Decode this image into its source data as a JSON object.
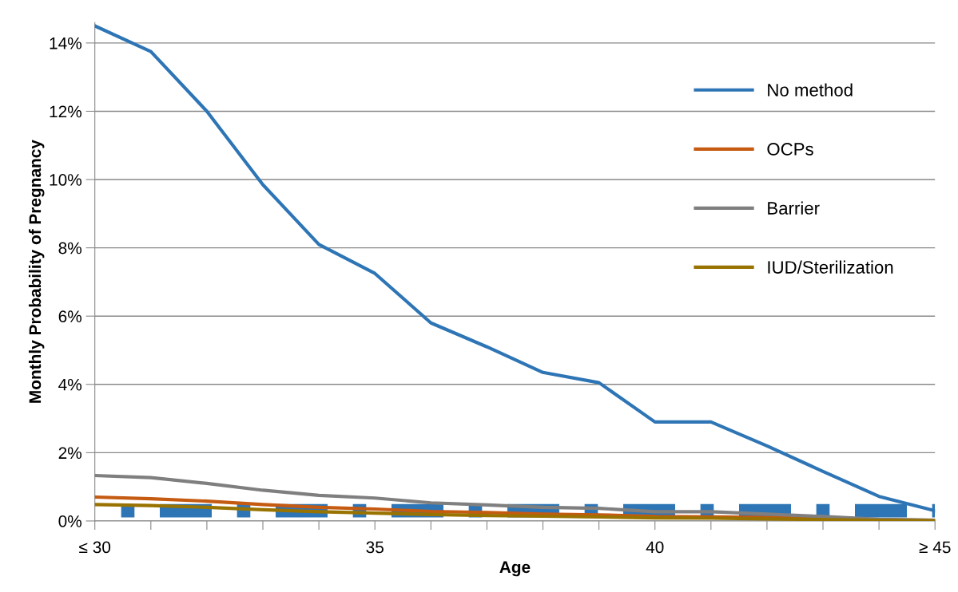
{
  "chart_data": {
    "type": "line",
    "xlabel": "Age",
    "ylabel": "Monthly Probability of Pregnancy",
    "x": [
      30,
      31,
      32,
      33,
      34,
      35,
      36,
      37,
      38,
      39,
      40,
      41,
      42,
      43,
      44,
      45
    ],
    "xlim": [
      30,
      45
    ],
    "xticks": [
      {
        "value": 30,
        "label": "≤ 30"
      },
      {
        "value": 31,
        "label": null
      },
      {
        "value": 32,
        "label": null
      },
      {
        "value": 33,
        "label": null
      },
      {
        "value": 34,
        "label": null
      },
      {
        "value": 35,
        "label": "35"
      },
      {
        "value": 36,
        "label": null
      },
      {
        "value": 37,
        "label": null
      },
      {
        "value": 38,
        "label": null
      },
      {
        "value": 39,
        "label": null
      },
      {
        "value": 40,
        "label": "40"
      },
      {
        "value": 41,
        "label": null
      },
      {
        "value": 42,
        "label": null
      },
      {
        "value": 43,
        "label": null
      },
      {
        "value": 44,
        "label": null
      },
      {
        "value": 45,
        "label": "≥ 45"
      }
    ],
    "ylim": [
      0,
      14.6
    ],
    "yticks": [
      {
        "value": 0,
        "label": "0%"
      },
      {
        "value": 2,
        "label": "2%"
      },
      {
        "value": 4,
        "label": "4%"
      },
      {
        "value": 6,
        "label": "6%"
      },
      {
        "value": 8,
        "label": "8%"
      },
      {
        "value": 10,
        "label": "10%"
      },
      {
        "value": 12,
        "label": "12%"
      },
      {
        "value": 14,
        "label": "14%"
      }
    ],
    "grid": "y",
    "legend": "right",
    "marker": "none",
    "line_style": "solid",
    "series": [
      {
        "name": "No method",
        "color": "#2e75b6",
        "values": [
          14.5,
          13.75,
          12.0,
          9.85,
          8.1,
          7.25,
          5.8,
          5.1,
          4.35,
          4.05,
          2.9,
          2.9,
          2.2,
          1.45,
          0.72,
          0.3
        ]
      },
      {
        "name": "OCPs",
        "color": "#c55a11",
        "values": [
          0.7,
          0.65,
          0.58,
          0.48,
          0.4,
          0.35,
          0.28,
          0.25,
          0.2,
          0.18,
          0.13,
          0.12,
          0.1,
          0.07,
          0.04,
          0.02
        ]
      },
      {
        "name": "Barrier",
        "color": "#7f7f7f",
        "values": [
          1.33,
          1.27,
          1.1,
          0.9,
          0.75,
          0.67,
          0.53,
          0.47,
          0.4,
          0.37,
          0.27,
          0.27,
          0.2,
          0.13,
          0.05,
          0.02
        ]
      },
      {
        "name": "IUD/Sterilization",
        "color": "#997300",
        "values": [
          0.48,
          0.45,
          0.4,
          0.33,
          0.27,
          0.23,
          0.19,
          0.16,
          0.14,
          0.12,
          0.09,
          0.08,
          0.06,
          0.04,
          0.02,
          0.01
        ]
      },
      {
        "color": "#2e75b6",
        "line_style": "dashed",
        "x": [
          30.47,
          45
        ],
        "values": [
          0.3,
          0.3
        ]
      }
    ]
  }
}
